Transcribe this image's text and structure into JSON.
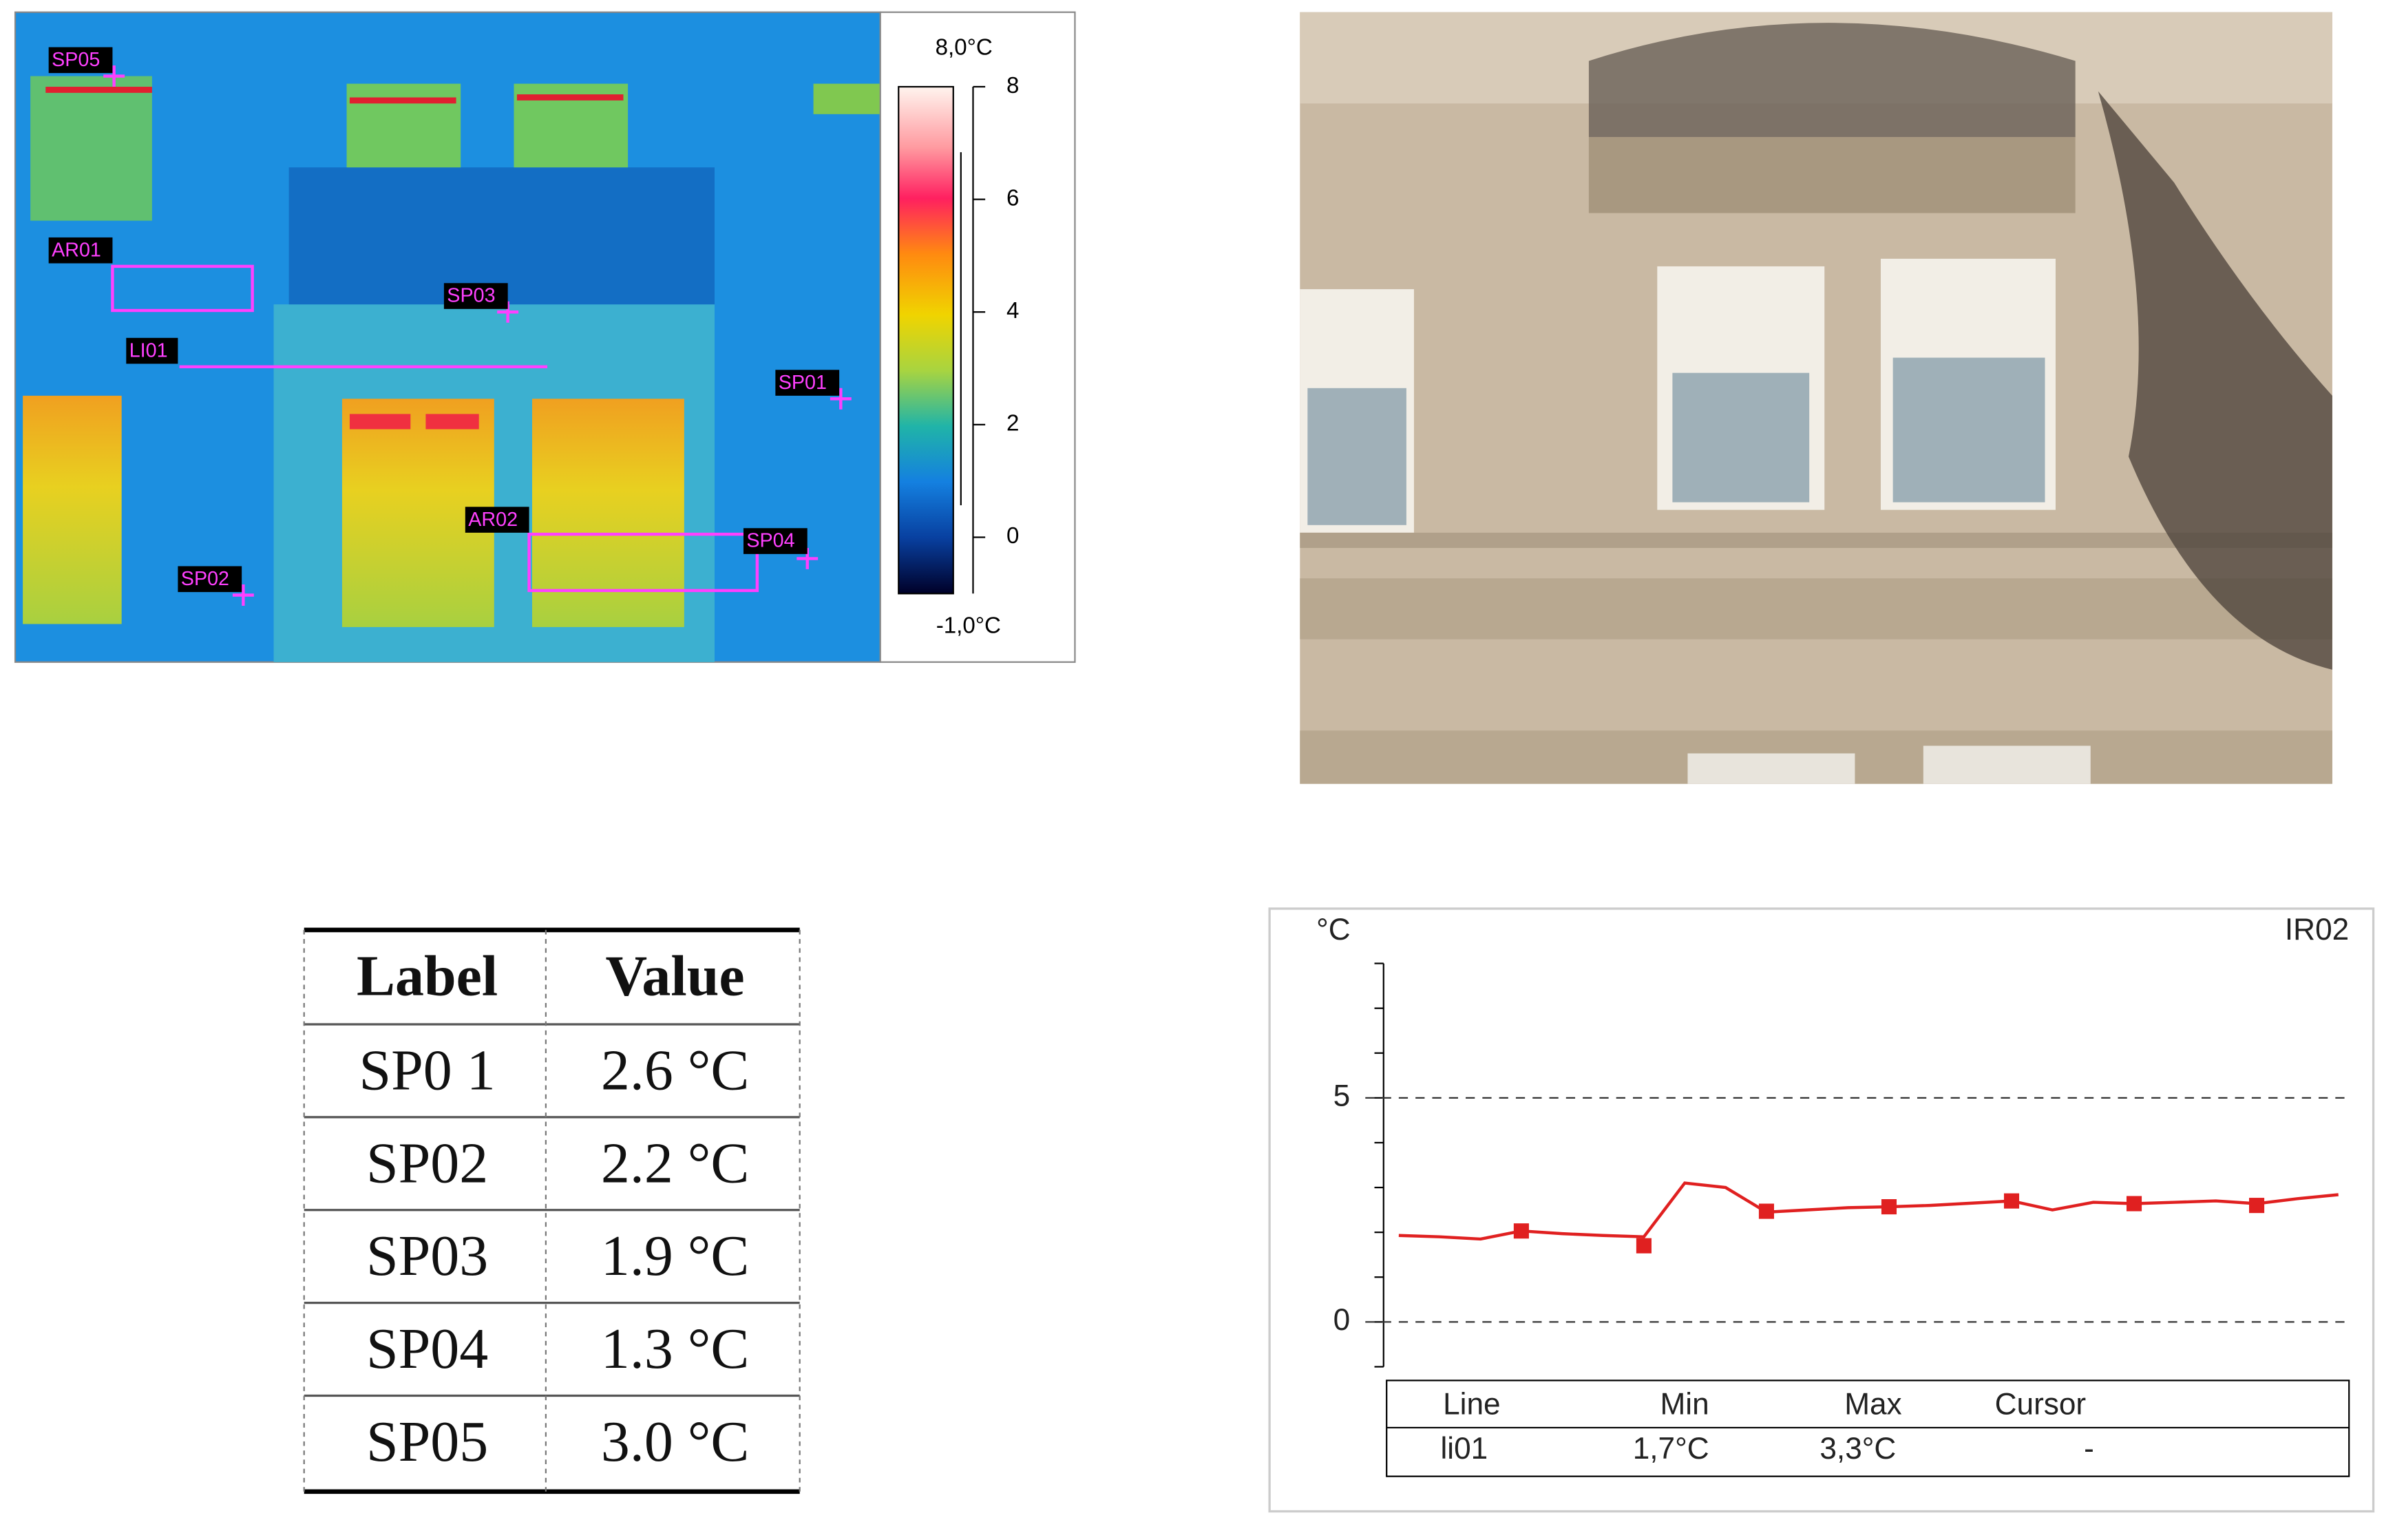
{
  "thermal": {
    "colorbar": {
      "max_label": "8,0°C",
      "min_label": "-1,0°C",
      "lim": [
        -1,
        8
      ],
      "ticks": [
        0,
        2,
        4,
        6,
        8
      ]
    },
    "annotations": [
      "SP05",
      "AR01",
      "SP03",
      "LI01",
      "SP01",
      "AR02",
      "SP04",
      "SP02"
    ]
  },
  "table": {
    "header": [
      "Label",
      "Value"
    ],
    "rows": [
      [
        "SP0 1",
        "2.6 °C"
      ],
      [
        "SP02",
        "2.2 °C"
      ],
      [
        "SP03",
        "1.9 °C"
      ],
      [
        "SP04",
        "1.3 °C"
      ],
      [
        "SP05",
        "3.0 °C"
      ]
    ]
  },
  "chart_data": {
    "type": "line",
    "y_unit": "°C",
    "title": "IR02",
    "ylim": [
      -1,
      8
    ],
    "yticks": [
      0,
      5
    ],
    "grid": "dashed",
    "series": [
      {
        "color": "#e02020",
        "values": [
          1.93,
          1.9,
          1.85,
          2.03,
          1.97,
          1.93,
          1.9,
          3.1,
          3.0,
          2.45,
          2.5,
          2.55,
          2.57,
          2.6,
          2.65,
          2.7,
          2.5,
          2.67,
          2.64,
          2.67,
          2.7,
          2.64,
          2.75,
          2.84
        ]
      },
      {
        "color": "#e02020",
        "marker": "square",
        "values": [
          null,
          null,
          null,
          2.03,
          null,
          null,
          1.7,
          null,
          null,
          2.47,
          null,
          null,
          2.57,
          null,
          null,
          2.7,
          null,
          null,
          2.64,
          null,
          null,
          2.6,
          null,
          null
        ]
      }
    ],
    "stats_table": {
      "header": [
        "Line",
        "Min",
        "Max",
        "Cursor"
      ],
      "row": [
        "li01",
        "1,7°C",
        "3,3°C",
        "-"
      ]
    }
  }
}
